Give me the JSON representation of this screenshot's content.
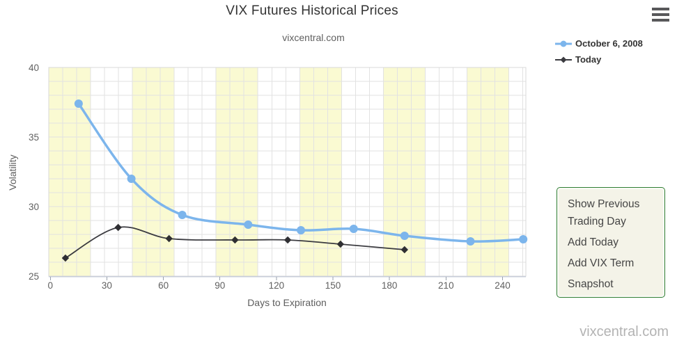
{
  "header": {
    "title": "VIX Futures Historical Prices",
    "subtitle": "vixcentral.com",
    "menu_icon": "hamburger-icon"
  },
  "chart_data": {
    "type": "line",
    "title": "VIX Futures Historical Prices",
    "subtitle": "vixcentral.com",
    "xlabel": "Days to Expiration",
    "ylabel": "Volatility",
    "xlim": [
      0,
      252
    ],
    "ylim": [
      25,
      40
    ],
    "x_ticks": [
      0,
      30,
      60,
      90,
      120,
      150,
      180,
      210,
      240
    ],
    "y_ticks": [
      25,
      30,
      35,
      40
    ],
    "grid": {
      "x_minor_step_days": 7.4,
      "y_minor_step": 1,
      "grid_on": true
    },
    "legend_position": "top-right",
    "series": [
      {
        "name": "October 6, 2008",
        "color": "#7cb5ec",
        "marker": "circle",
        "x": [
          15,
          43,
          70,
          105,
          133,
          161,
          188,
          223,
          251
        ],
        "y": [
          37.4,
          32.0,
          29.4,
          28.7,
          28.3,
          28.4,
          27.9,
          27.5,
          27.65
        ]
      },
      {
        "name": "Today",
        "color": "#3b3b40",
        "marker": "diamond",
        "x": [
          8,
          36,
          63,
          98,
          126,
          154,
          188
        ],
        "y": [
          26.3,
          28.5,
          27.7,
          27.6,
          27.6,
          27.3,
          26.9
        ]
      }
    ],
    "plot_bands": {
      "color": "#fafad2",
      "ranges": [
        [
          -0.85,
          21.35
        ],
        [
          43.55,
          65.75
        ],
        [
          87.95,
          110.15
        ],
        [
          132.35,
          154.55
        ],
        [
          176.75,
          198.95
        ],
        [
          221.15,
          243.35
        ]
      ]
    },
    "axis_colors": {
      "tick_label": "#606060",
      "axis_line": "#c7cdd9",
      "grid_line": "#e2e2e2",
      "plot_border": "#d8d8d8"
    }
  },
  "side_menu": {
    "items": [
      "Show Previous Trading Day",
      "Add Today",
      "Add VIX Term",
      "Snapshot"
    ]
  },
  "watermark": "vixcentral.com"
}
